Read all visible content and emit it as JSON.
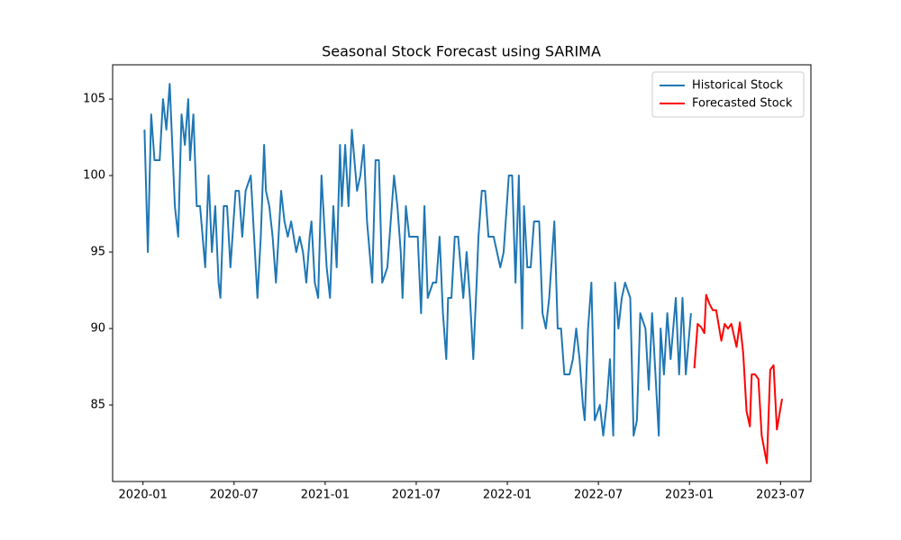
{
  "chart_data": {
    "type": "line",
    "title": "Seasonal Stock Forecast using SARIMA",
    "xlim": [
      "2019-11",
      "2023-09"
    ],
    "xticks": [
      "2020-01",
      "2020-07",
      "2021-01",
      "2021-07",
      "2022-01",
      "2022-07",
      "2023-01",
      "2023-07"
    ],
    "ylim": [
      80,
      107.24
    ],
    "yticks": [
      85,
      90,
      95,
      100,
      105
    ],
    "legend": "upper right",
    "series": [
      {
        "name": "Historical Stock",
        "color": "#1f77b4",
        "x": [
          "2020-01",
          "2020-01",
          "2020-01",
          "2020-01",
          "2020-02",
          "2020-02",
          "2020-02",
          "2020-02",
          "2020-03",
          "2020-03",
          "2020-03",
          "2020-03",
          "2020-03",
          "2020-04",
          "2020-04",
          "2020-04",
          "2020-04",
          "2020-05",
          "2020-05",
          "2020-05",
          "2020-05",
          "2020-05",
          "2020-06",
          "2020-06",
          "2020-06",
          "2020-06",
          "2020-07",
          "2020-07",
          "2020-07",
          "2020-07",
          "2020-08",
          "2020-08",
          "2020-08",
          "2020-08",
          "2020-08",
          "2020-09",
          "2020-09",
          "2020-09",
          "2020-09",
          "2020-10",
          "2020-10",
          "2020-10",
          "2020-10",
          "2020-11",
          "2020-11",
          "2020-11",
          "2020-11",
          "2020-11",
          "2020-12",
          "2020-12",
          "2020-12",
          "2020-12",
          "2021-01",
          "2021-01",
          "2021-01",
          "2021-01",
          "2021-01",
          "2021-02",
          "2021-02",
          "2021-02",
          "2021-02",
          "2021-03",
          "2021-03",
          "2021-03",
          "2021-03",
          "2021-04",
          "2021-04",
          "2021-04",
          "2021-04",
          "2021-05",
          "2021-05",
          "2021-05",
          "2021-05",
          "2021-05",
          "2021-06",
          "2021-06",
          "2021-06",
          "2021-06",
          "2021-07",
          "2021-07",
          "2021-07",
          "2021-07",
          "2021-08",
          "2021-08",
          "2021-08",
          "2021-08",
          "2021-08",
          "2021-09",
          "2021-09",
          "2021-09",
          "2021-09",
          "2021-10",
          "2021-10",
          "2021-10",
          "2021-10",
          "2021-10",
          "2021-11",
          "2021-11",
          "2021-11",
          "2021-11",
          "2021-12",
          "2021-12",
          "2021-12",
          "2021-12",
          "2022-01",
          "2022-01",
          "2022-01",
          "2022-01",
          "2022-01",
          "2022-02",
          "2022-02",
          "2022-02",
          "2022-02",
          "2022-03",
          "2022-03",
          "2022-03",
          "2022-03",
          "2022-04",
          "2022-04",
          "2022-04",
          "2022-04",
          "2022-05",
          "2022-05",
          "2022-05",
          "2022-05",
          "2022-05",
          "2022-06",
          "2022-06",
          "2022-06",
          "2022-06",
          "2022-07",
          "2022-07",
          "2022-07",
          "2022-07",
          "2022-07",
          "2022-08",
          "2022-08",
          "2022-08",
          "2022-08",
          "2022-09",
          "2022-09",
          "2022-09",
          "2022-09",
          "2022-10",
          "2022-10",
          "2022-10",
          "2022-10",
          "2022-10",
          "2022-11",
          "2022-11",
          "2022-11",
          "2022-11",
          "2022-12",
          "2022-12",
          "2022-12",
          "2022-12",
          "2023-01"
        ],
        "values": [
          103,
          95,
          104,
          101,
          101,
          105,
          103,
          106,
          98,
          96,
          104,
          102,
          105,
          101,
          104,
          98,
          98,
          94,
          100,
          95,
          98,
          93,
          92,
          98,
          98,
          94,
          99,
          99,
          96,
          99,
          100,
          96,
          92,
          96,
          102,
          99,
          98,
          96,
          93,
          99,
          97,
          96,
          97,
          95,
          96,
          95,
          93,
          96,
          97,
          93,
          92,
          100,
          94,
          92,
          98,
          94,
          102,
          98,
          102,
          98,
          103,
          99,
          100,
          102,
          97,
          93,
          101,
          101,
          93,
          94,
          97,
          100,
          98,
          95,
          92,
          98,
          96,
          96,
          96,
          91,
          98,
          92,
          93,
          93,
          96,
          91,
          88,
          92,
          92,
          96,
          96,
          92,
          95,
          92,
          88,
          93,
          96,
          99,
          99,
          96,
          96,
          95,
          94,
          95,
          100,
          100,
          93,
          100,
          90,
          98,
          94,
          94,
          97,
          97,
          91,
          90,
          92,
          97,
          90,
          90,
          87,
          87,
          88,
          90,
          88,
          85,
          84,
          90,
          93,
          84,
          85,
          83,
          85,
          88,
          83,
          93,
          90,
          92,
          93,
          92,
          83,
          84,
          91,
          90,
          86,
          91,
          87,
          83,
          90,
          87,
          91,
          88,
          92,
          87,
          92,
          87,
          91
        ]
      },
      {
        "name": "Forecasted Stock",
        "color": "#ff0000",
        "x": [
          "2023-01",
          "2023-01",
          "2023-01",
          "2023-01",
          "2023-02",
          "2023-02",
          "2023-02",
          "2023-02",
          "2023-03",
          "2023-03",
          "2023-03",
          "2023-03",
          "2023-04",
          "2023-04",
          "2023-04",
          "2023-04",
          "2023-04",
          "2023-05",
          "2023-05",
          "2023-05",
          "2023-05",
          "2023-06",
          "2023-06",
          "2023-06",
          "2023-06",
          "2023-07"
        ],
        "values": [
          87.4,
          90.3,
          90.1,
          89.7,
          92.2,
          91.6,
          91.2,
          91.2,
          89.2,
          90.3,
          90.0,
          90.3,
          88.8,
          90.4,
          88.4,
          84.6,
          83.6,
          87.0,
          87.0,
          86.7,
          83.0,
          81.2,
          87.3,
          87.6,
          83.4,
          85.4
        ]
      }
    ]
  }
}
